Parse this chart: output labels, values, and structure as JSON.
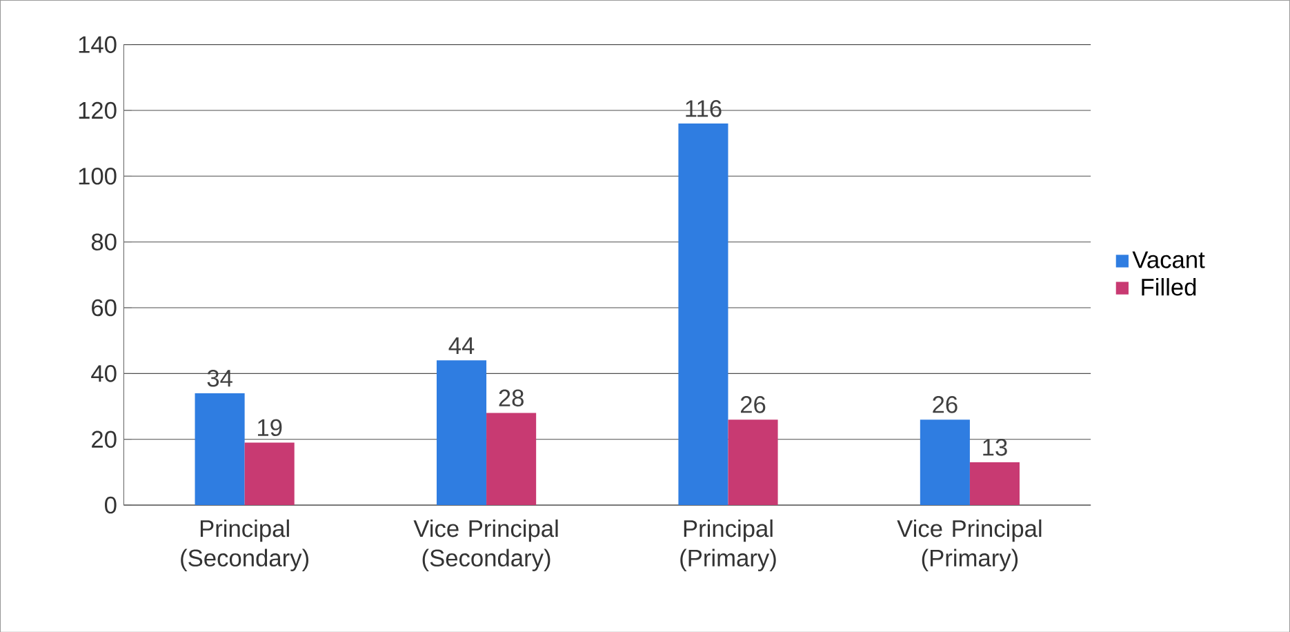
{
  "chart_data": {
    "type": "bar",
    "categories": [
      "Principal (Secondary)",
      "Vice Principal (Secondary)",
      "Principal (Primary)",
      "Vice Principal (Primary)"
    ],
    "series": [
      {
        "name": "Vacant",
        "color": "#2f7de1",
        "values": [
          34,
          44,
          116,
          26
        ]
      },
      {
        "name": "Filled",
        "color": "#c83a72",
        "values": [
          19,
          28,
          26,
          13
        ]
      }
    ],
    "ylim": [
      0,
      140
    ],
    "yticks": [
      0,
      20,
      40,
      60,
      80,
      100,
      120,
      140
    ],
    "grid": "y",
    "legend": "right",
    "data_labels": true
  }
}
